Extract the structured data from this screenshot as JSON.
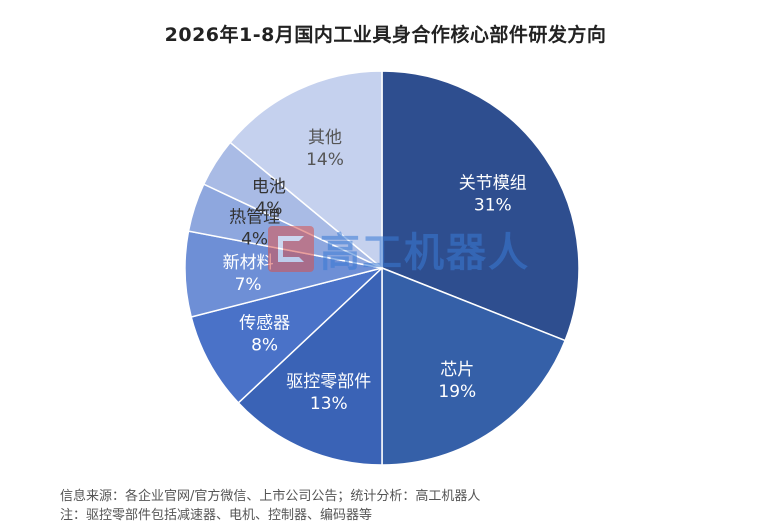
{
  "chart_data": {
    "type": "pie",
    "title": "2026年1-8月国内工业具身合作核心部件研发方向",
    "slices": [
      {
        "label": "关节模组",
        "value": 31,
        "value_label": "31%",
        "color": "#2e4e8f",
        "text_color": "#ffffff"
      },
      {
        "label": "芯片",
        "value": 19,
        "value_label": "19%",
        "color": "#3560a8",
        "text_color": "#ffffff"
      },
      {
        "label": "驱控零部件",
        "value": 13,
        "value_label": "13%",
        "color": "#3a63b6",
        "text_color": "#ffffff"
      },
      {
        "label": "传感器",
        "value": 8,
        "value_label": "8%",
        "color": "#4a72c8",
        "text_color": "#ffffff"
      },
      {
        "label": "新材料",
        "value": 7,
        "value_label": "7%",
        "color": "#6e8fd6",
        "text_color": "#ffffff"
      },
      {
        "label": "热管理",
        "value": 4,
        "value_label": "4%",
        "color": "#8ea7de",
        "text_color": "#333333"
      },
      {
        "label": "电池",
        "value": 4,
        "value_label": "4%",
        "color": "#a9bbe5",
        "text_color": "#333333"
      },
      {
        "label": "其他",
        "value": 14,
        "value_label": "14%",
        "color": "#c5d1ee",
        "text_color": "#555555"
      }
    ]
  },
  "watermark": {
    "text": "高工机器人"
  },
  "footer": {
    "source": "信息来源：各企业官网/官方微信、上市公司公告；统计分析：高工机器人",
    "note": "注：驱控零部件包括减速器、电机、控制器、编码器等"
  }
}
